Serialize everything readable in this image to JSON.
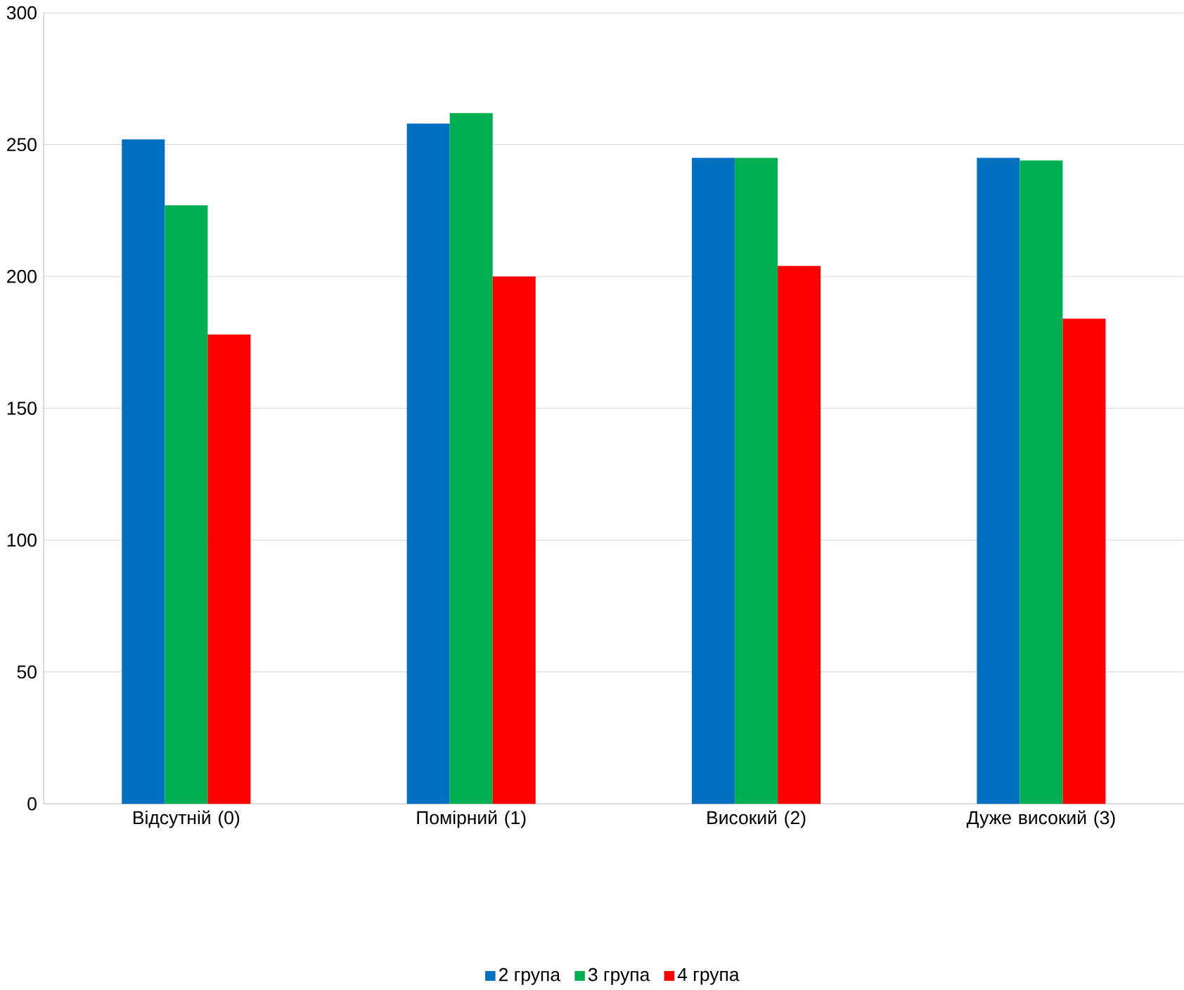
{
  "chart_data": {
    "type": "bar",
    "categories": [
      "Відсутній (0)",
      "Помірний (1)",
      "Високий (2)",
      "Дуже високий (3)"
    ],
    "series": [
      {
        "name": "2 група",
        "color": "#0070c0",
        "values": [
          252,
          258,
          245,
          245
        ]
      },
      {
        "name": "3 група",
        "color": "#00b050",
        "values": [
          227,
          262,
          245,
          244
        ]
      },
      {
        "name": "4 група",
        "color": "#ff0000",
        "values": [
          178,
          200,
          204,
          184
        ]
      }
    ],
    "ylim": [
      0,
      300
    ],
    "yticks": [
      0,
      50,
      100,
      150,
      200,
      250,
      300
    ],
    "grid": "y",
    "legend": "bottom"
  }
}
